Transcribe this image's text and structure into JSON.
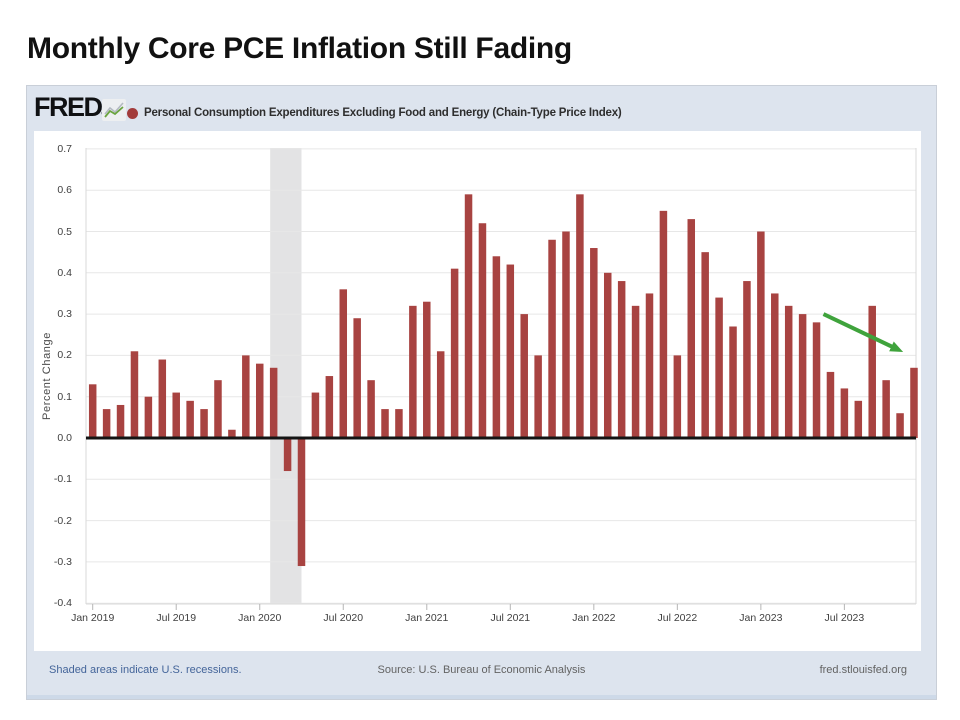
{
  "slide": {
    "title": "Monthly Core PCE Inflation Still Fading"
  },
  "fred": {
    "logo_text": "FRED",
    "registered": "®",
    "sparkline_icon": "line-chart-sparkline",
    "series_title": "Personal Consumption Expenditures Excluding Food and Energy (Chain-Type Price Index)",
    "footer": {
      "left": "Shaded areas indicate U.S. recessions.",
      "center": "Source: U.S. Bureau of Economic Analysis",
      "right": "fred.stlouisfed.org"
    }
  },
  "chart_data": {
    "type": "bar",
    "title": "Personal Consumption Expenditures Excluding Food and Energy (Chain-Type Price Index)",
    "xlabel": "",
    "ylabel": "Percent Change",
    "ylim": [
      -0.4,
      0.7
    ],
    "grid": true,
    "y_ticks": [
      0.7,
      0.6,
      0.5,
      0.4,
      0.3,
      0.2,
      0.1,
      0.0,
      -0.1,
      -0.2,
      -0.3,
      -0.4
    ],
    "x_tick_indices": [
      0,
      6,
      12,
      18,
      24,
      30,
      36,
      42,
      48,
      54
    ],
    "x_tick_labels": [
      "Jan 2019",
      "Jul 2019",
      "Jan 2020",
      "Jul 2020",
      "Jan 2021",
      "Jul 2021",
      "Jan 2022",
      "Jul 2022",
      "Jan 2023",
      "Jul 2023"
    ],
    "categories": [
      "Jan 2019",
      "Feb 2019",
      "Mar 2019",
      "Apr 2019",
      "May 2019",
      "Jun 2019",
      "Jul 2019",
      "Aug 2019",
      "Sep 2019",
      "Oct 2019",
      "Nov 2019",
      "Dec 2019",
      "Jan 2020",
      "Feb 2020",
      "Mar 2020",
      "Apr 2020",
      "May 2020",
      "Jun 2020",
      "Jul 2020",
      "Aug 2020",
      "Sep 2020",
      "Oct 2020",
      "Nov 2020",
      "Dec 2020",
      "Jan 2021",
      "Feb 2021",
      "Mar 2021",
      "Apr 2021",
      "May 2021",
      "Jun 2021",
      "Jul 2021",
      "Aug 2021",
      "Sep 2021",
      "Oct 2021",
      "Nov 2021",
      "Dec 2021",
      "Jan 2022",
      "Feb 2022",
      "Mar 2022",
      "Apr 2022",
      "May 2022",
      "Jun 2022",
      "Jul 2022",
      "Aug 2022",
      "Sep 2022",
      "Oct 2022",
      "Nov 2022",
      "Dec 2022",
      "Jan 2023",
      "Feb 2023",
      "Mar 2023",
      "Apr 2023",
      "May 2023",
      "Jun 2023",
      "Jul 2023",
      "Aug 2023",
      "Sep 2023",
      "Oct 2023",
      "Nov 2023",
      "Dec 2023"
    ],
    "values": [
      0.13,
      0.07,
      0.08,
      0.21,
      0.1,
      0.19,
      0.11,
      0.09,
      0.07,
      0.14,
      0.02,
      0.2,
      0.18,
      0.17,
      -0.08,
      -0.31,
      0.11,
      0.15,
      0.36,
      0.29,
      0.14,
      0.07,
      0.07,
      0.32,
      0.33,
      0.21,
      0.41,
      0.59,
      0.52,
      0.44,
      0.42,
      0.3,
      0.2,
      0.48,
      0.5,
      0.59,
      0.46,
      0.4,
      0.38,
      0.32,
      0.35,
      0.55,
      0.2,
      0.53,
      0.45,
      0.34,
      0.27,
      0.38,
      0.5,
      0.35,
      0.32,
      0.3,
      0.28,
      0.16,
      0.12,
      0.09,
      0.32,
      0.14,
      0.06,
      0.17
    ],
    "bar_color": "#a84341",
    "recession_band": {
      "start_index": 13,
      "end_index": 15,
      "color": "#e3e3e4"
    },
    "zero_line_color": "#141414",
    "annotation_arrow": {
      "color": "#3fa33c",
      "from": {
        "index": 52.5,
        "value": 0.3
      },
      "to": {
        "index": 57.8,
        "value": 0.215
      }
    },
    "legend_position": "top"
  }
}
